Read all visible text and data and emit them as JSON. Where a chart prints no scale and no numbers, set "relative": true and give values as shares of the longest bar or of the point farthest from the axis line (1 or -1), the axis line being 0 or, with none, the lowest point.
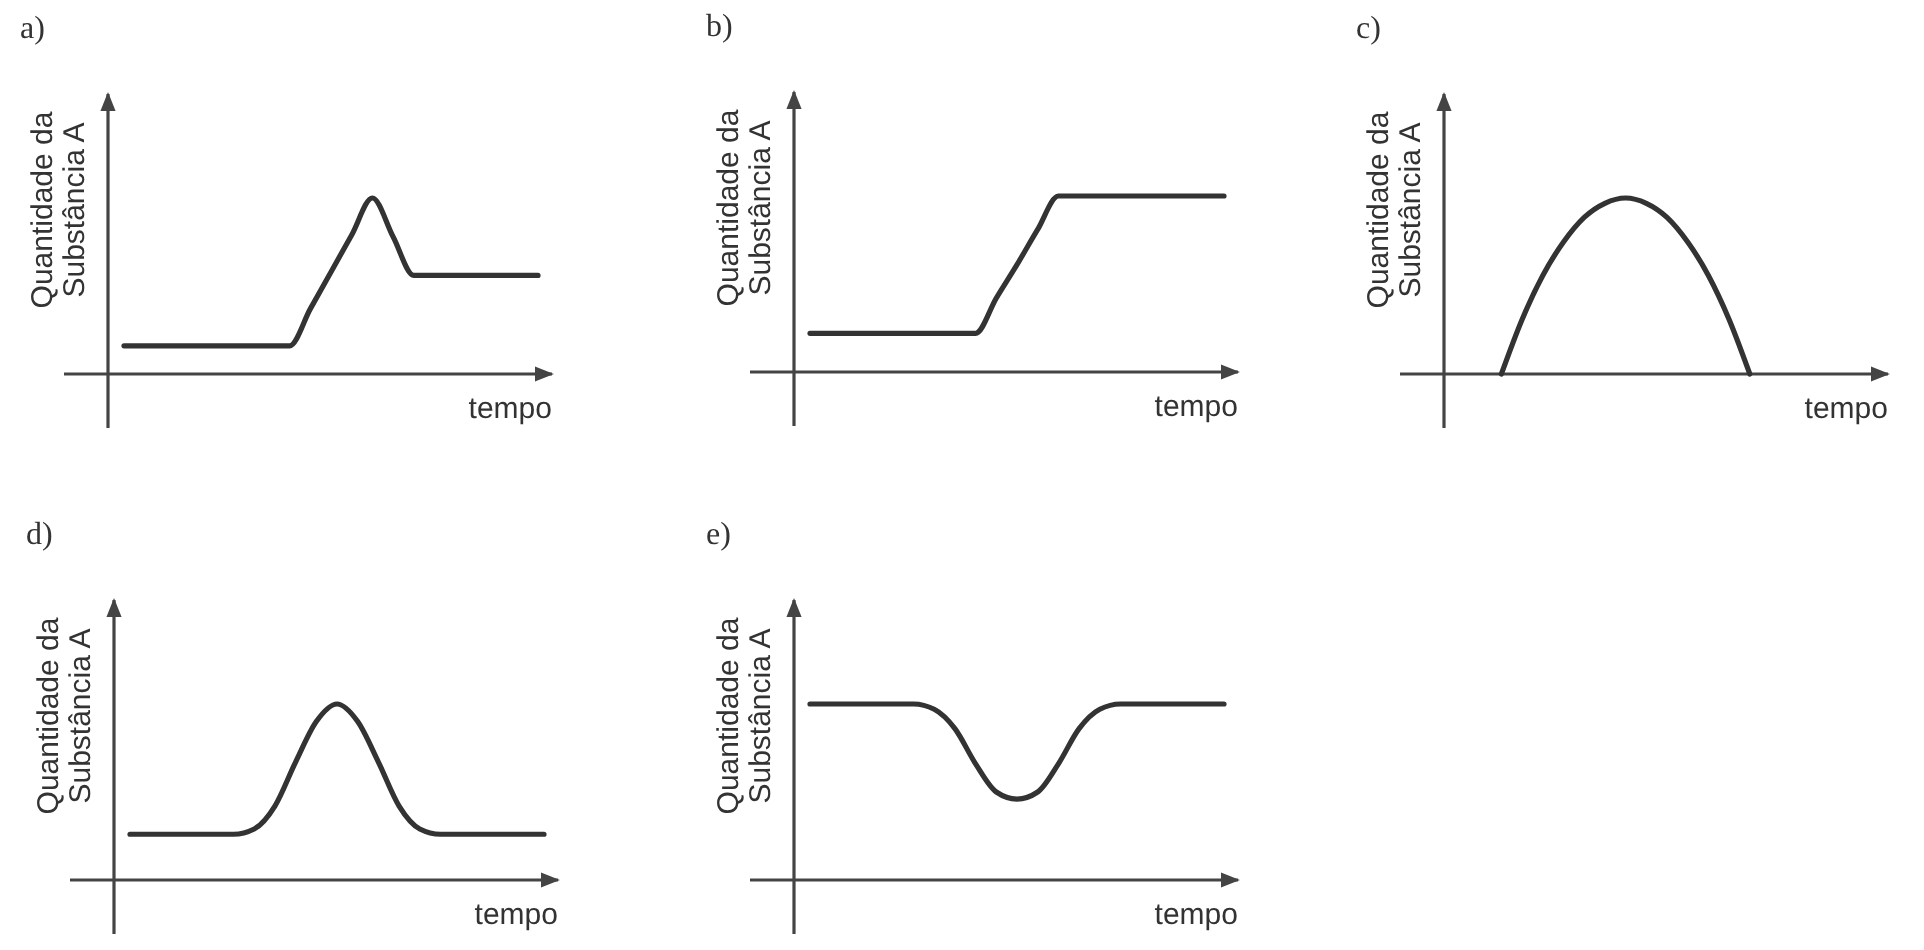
{
  "chart_data": [
    {
      "type": "line",
      "title": "a)",
      "xlabel": "tempo",
      "ylabel": "Quantidade da\nSubstância A",
      "relative": true,
      "categories": [
        null,
        null,
        null,
        null,
        null,
        null,
        null,
        null,
        null,
        null,
        null,
        null,
        null,
        null,
        null,
        null,
        null,
        null,
        null,
        null,
        null
      ],
      "series": [
        {
          "color": "#333333",
          "values": [
            0.16,
            0.16,
            0.16,
            0.16,
            0.16,
            0.16,
            0.16,
            0.16,
            0.16,
            0.37,
            0.58,
            0.79,
            1.0,
            0.78,
            0.56,
            0.56,
            0.56,
            0.56,
            0.56,
            0.56,
            0.56
          ]
        }
      ]
    },
    {
      "type": "line",
      "title": "b)",
      "xlabel": "tempo",
      "ylabel": "Quantidade da\nSubstância A",
      "relative": true,
      "categories": [
        null,
        null,
        null,
        null,
        null,
        null,
        null,
        null,
        null,
        null,
        null,
        null,
        null,
        null,
        null,
        null,
        null,
        null,
        null,
        null,
        null
      ],
      "series": [
        {
          "color": "#333333",
          "values": [
            0.22,
            0.22,
            0.22,
            0.22,
            0.22,
            0.22,
            0.22,
            0.22,
            0.22,
            0.42,
            0.61,
            0.81,
            1.0,
            1.0,
            1.0,
            1.0,
            1.0,
            1.0,
            1.0,
            1.0,
            1.0
          ]
        }
      ]
    },
    {
      "type": "line",
      "title": "c)",
      "xlabel": "tempo",
      "ylabel": "Quantidade da\nSubstância A",
      "relative": true,
      "categories": [
        null,
        null,
        null,
        null,
        null,
        null,
        null,
        null,
        null,
        null,
        null,
        null,
        null,
        null,
        null,
        null,
        null,
        null,
        null,
        null,
        null
      ],
      "series": [
        {
          "color": "#333333",
          "values": [
            null,
            null,
            0,
            0.31,
            0.56,
            0.75,
            0.89,
            0.97,
            1.0,
            0.97,
            0.89,
            0.75,
            0.56,
            0.31,
            0,
            null,
            null,
            null,
            null,
            null,
            null
          ]
        }
      ]
    },
    {
      "type": "line",
      "title": "d)",
      "xlabel": "tempo",
      "ylabel": "Quantidade da\nSubstância A",
      "relative": true,
      "categories": [
        null,
        null,
        null,
        null,
        null,
        null,
        null,
        null,
        null,
        null,
        null,
        null,
        null,
        null,
        null,
        null,
        null,
        null,
        null,
        null,
        null
      ],
      "series": [
        {
          "color": "#333333",
          "values": [
            0.26,
            0.26,
            0.26,
            0.26,
            0.26,
            0.26,
            0.29,
            0.42,
            0.67,
            0.9,
            1.0,
            0.9,
            0.67,
            0.42,
            0.29,
            0.26,
            0.26,
            0.26,
            0.26,
            0.26,
            0.26
          ]
        }
      ]
    },
    {
      "type": "line",
      "title": "e)",
      "xlabel": "tempo",
      "ylabel": "Quantidade da\nSubstância A",
      "relative": true,
      "categories": [
        null,
        null,
        null,
        null,
        null,
        null,
        null,
        null,
        null,
        null,
        null,
        null,
        null,
        null,
        null,
        null,
        null,
        null,
        null,
        null,
        null
      ],
      "series": [
        {
          "color": "#333333",
          "values": [
            1.0,
            1.0,
            1.0,
            1.0,
            1.0,
            1.0,
            0.97,
            0.86,
            0.66,
            0.5,
            0.46,
            0.5,
            0.66,
            0.86,
            0.97,
            1.0,
            1.0,
            1.0,
            1.0,
            1.0,
            1.0
          ]
        }
      ]
    }
  ]
}
